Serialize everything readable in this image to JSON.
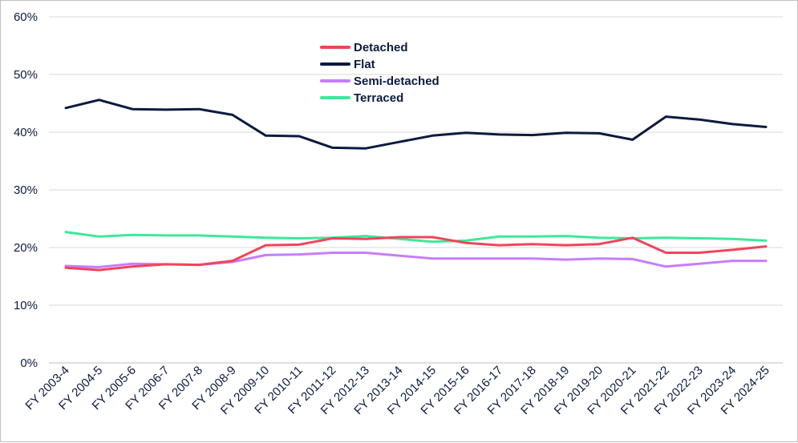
{
  "chart_data": {
    "type": "line",
    "title": "",
    "xlabel": "",
    "ylabel": "",
    "ylim": [
      0,
      60
    ],
    "yticks": [
      "0%",
      "10%",
      "20%",
      "30%",
      "40%",
      "50%",
      "60%"
    ],
    "grid": true,
    "legend_position": "top-center",
    "categories": [
      "FY 2003-4",
      "FY 2004-5",
      "FY 2005-6",
      "FY 2006-7",
      "FY 2007-8",
      "FY 2008-9",
      "FY 2009-10",
      "FY 2010-11",
      "FY 2011-12",
      "FY 2012-13",
      "FY 2013-14",
      "FY 2014-15",
      "FY 2015-16",
      "FY 2016-17",
      "FY 2017-18",
      "FY 2018-19",
      "FY 2019-20",
      "FY 2020-21",
      "FY 2021-22",
      "FY 2022-23",
      "FY 2023-24",
      "FY 2024-25"
    ],
    "series": [
      {
        "name": "Detached",
        "color": "#f0455a",
        "values": [
          16.5,
          16.1,
          16.7,
          17.1,
          17.0,
          17.7,
          20.4,
          20.5,
          21.6,
          21.5,
          21.8,
          21.8,
          20.8,
          20.4,
          20.6,
          20.4,
          20.6,
          21.7,
          19.1,
          19.1,
          19.6,
          20.2
        ]
      },
      {
        "name": "Flat",
        "color": "#0b1b3f",
        "values": [
          44.2,
          45.6,
          44.0,
          43.9,
          44.0,
          43.0,
          39.4,
          39.3,
          37.3,
          37.2,
          38.3,
          39.4,
          39.9,
          39.6,
          39.5,
          39.9,
          39.8,
          38.7,
          42.7,
          42.2,
          41.4,
          40.9
        ]
      },
      {
        "name": "Semi-detached",
        "color": "#c77dff",
        "values": [
          16.8,
          16.6,
          17.2,
          17.1,
          17.0,
          17.5,
          18.7,
          18.8,
          19.1,
          19.1,
          18.6,
          18.1,
          18.1,
          18.1,
          18.1,
          17.9,
          18.1,
          18.0,
          16.7,
          17.2,
          17.7,
          17.7
        ]
      },
      {
        "name": "Terraced",
        "color": "#3ee89a",
        "values": [
          22.7,
          21.9,
          22.2,
          22.1,
          22.1,
          21.9,
          21.7,
          21.6,
          21.7,
          22.0,
          21.5,
          21.0,
          21.2,
          21.9,
          21.9,
          22.0,
          21.7,
          21.6,
          21.7,
          21.6,
          21.5,
          21.2
        ]
      }
    ]
  }
}
